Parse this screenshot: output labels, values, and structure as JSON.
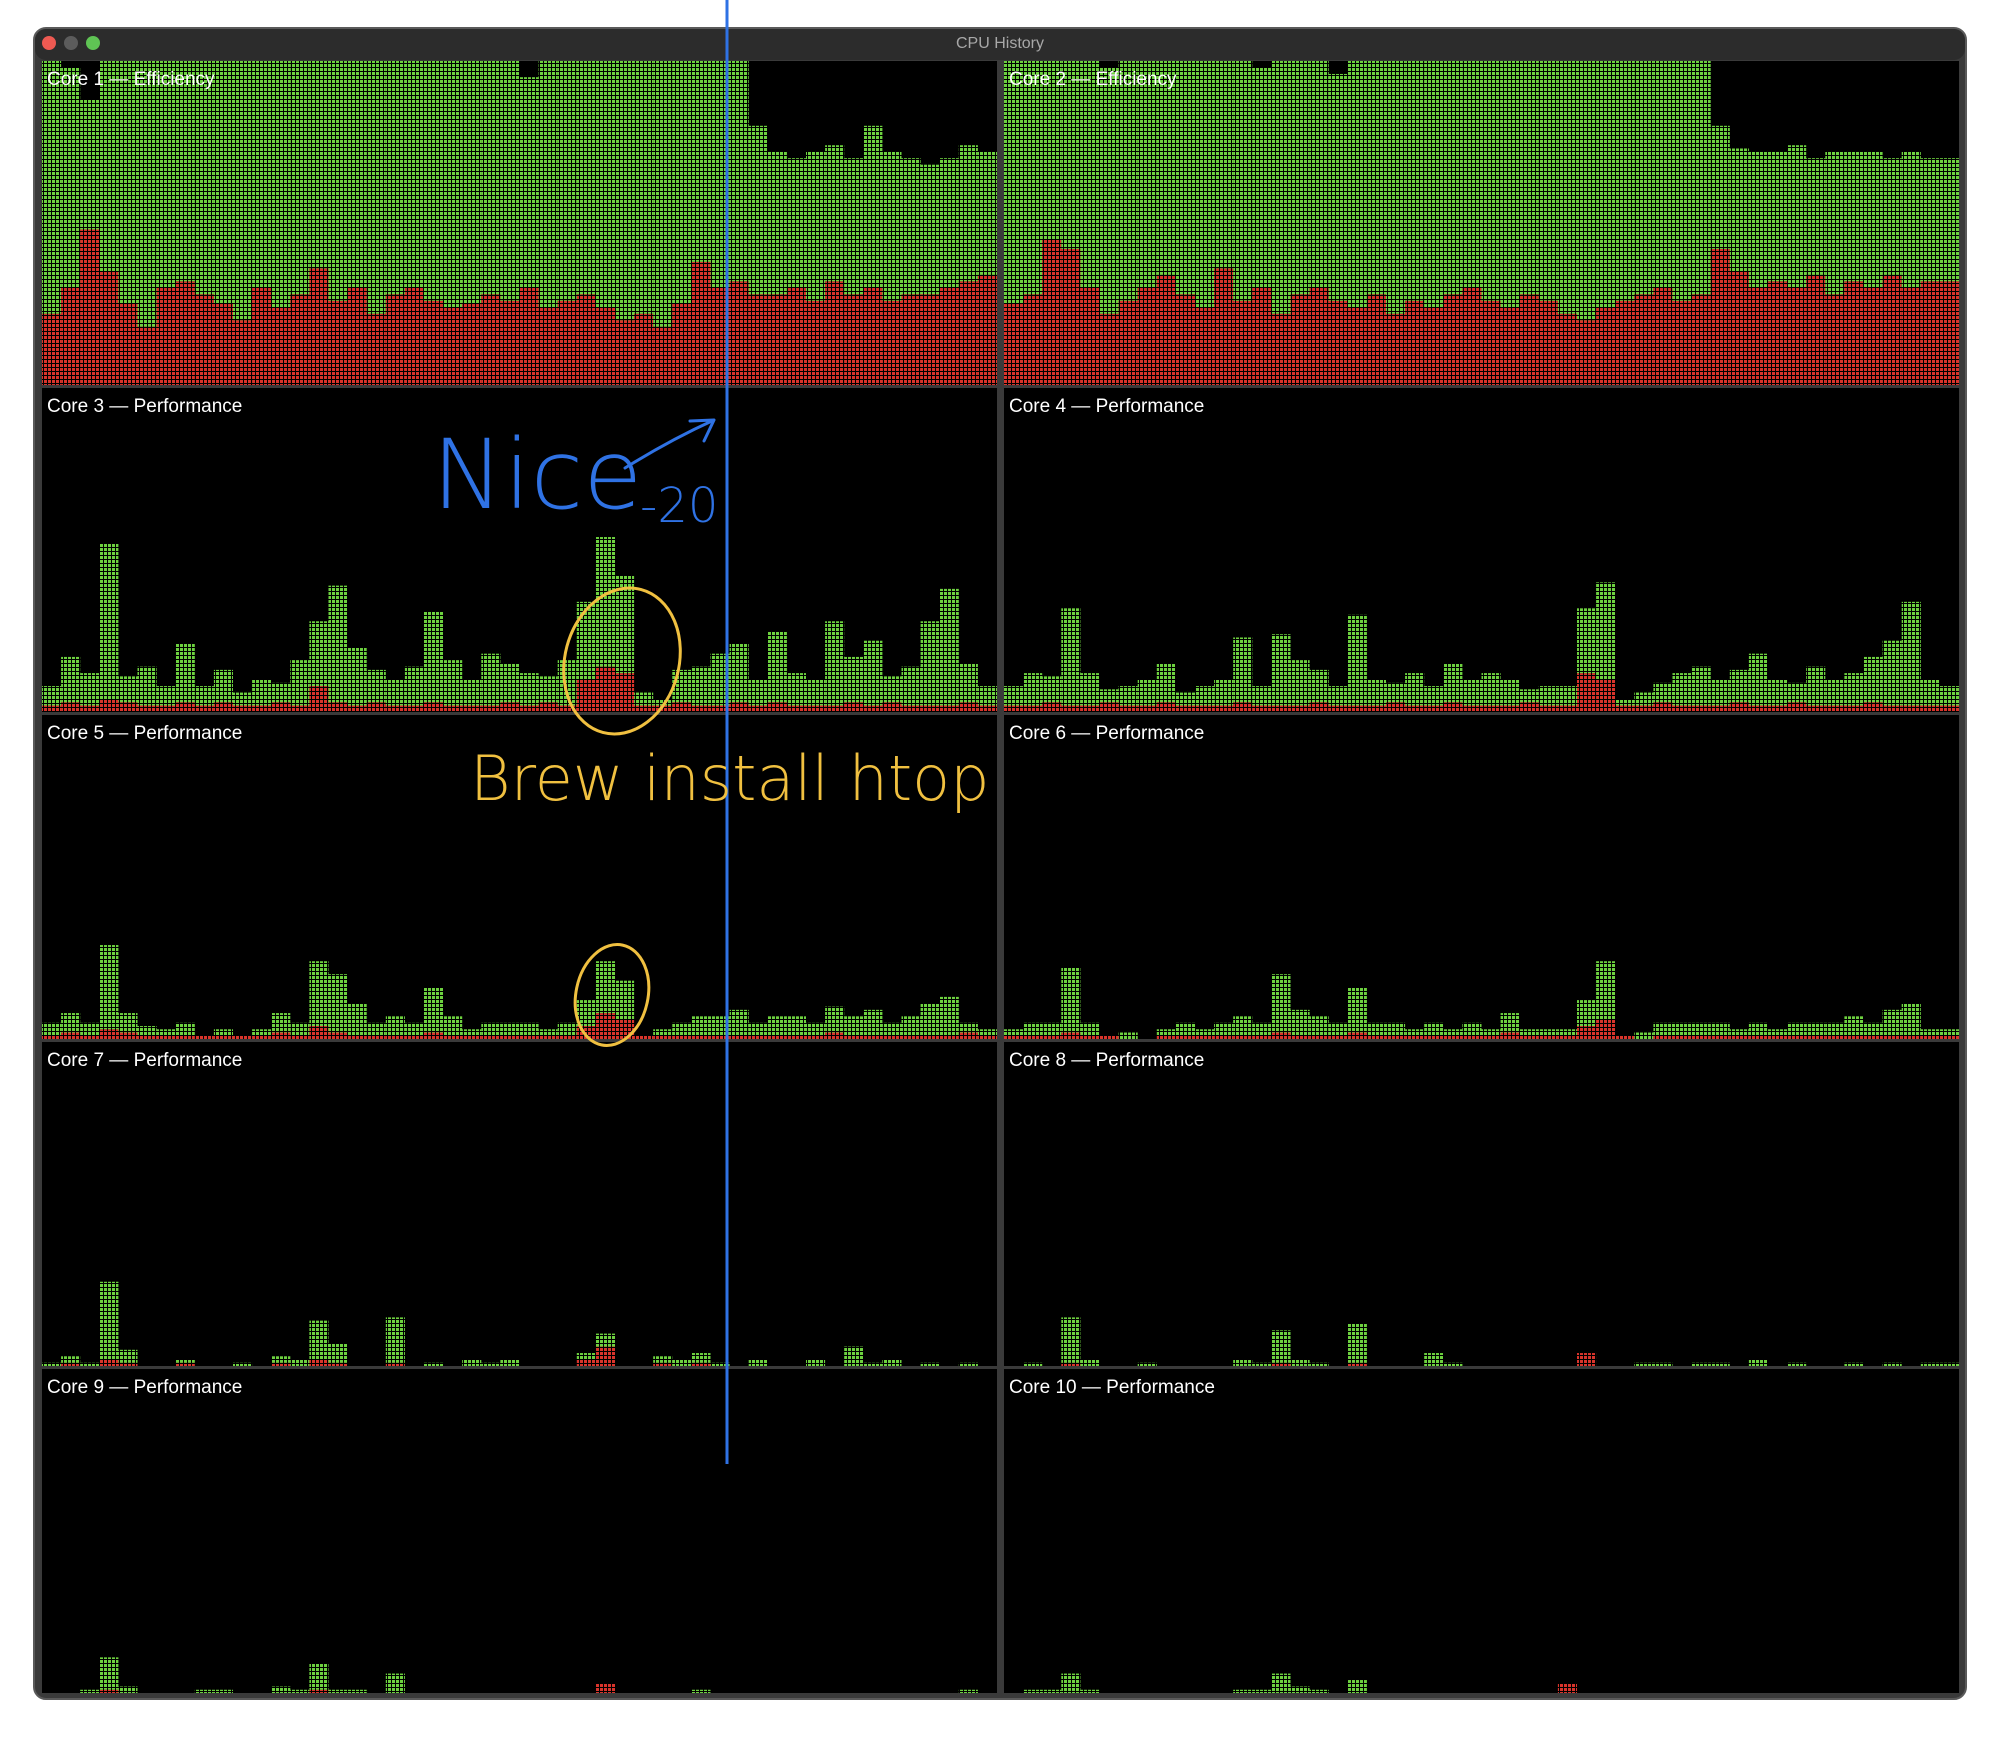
{
  "window": {
    "title": "CPU History"
  },
  "colors": {
    "system": "#d9342b",
    "user": "#6dd13f"
  },
  "panels": [
    {
      "label": "Core 1 — Efficiency",
      "system": [
        22,
        30,
        48,
        35,
        25,
        18,
        30,
        32,
        28,
        25,
        20,
        30,
        24,
        28,
        36,
        26,
        30,
        22,
        28,
        30,
        26,
        24,
        25,
        28,
        26,
        30,
        24,
        26,
        28,
        24,
        20,
        22,
        18,
        25,
        38,
        30,
        32,
        28,
        28,
        30,
        26,
        32,
        28,
        30,
        26,
        28,
        28,
        30,
        32,
        34
      ],
      "user": [
        78,
        68,
        40,
        65,
        75,
        82,
        70,
        68,
        72,
        75,
        80,
        70,
        76,
        72,
        64,
        74,
        70,
        78,
        72,
        70,
        74,
        76,
        75,
        72,
        74,
        65,
        76,
        74,
        72,
        76,
        80,
        78,
        82,
        75,
        62,
        70,
        68,
        52,
        44,
        40,
        46,
        42,
        42,
        50,
        46,
        42,
        40,
        40,
        42,
        38
      ]
    },
    {
      "label": "Core 2 — Efficiency",
      "system": [
        25,
        28,
        45,
        42,
        30,
        22,
        26,
        30,
        34,
        28,
        24,
        36,
        26,
        30,
        22,
        28,
        30,
        26,
        24,
        28,
        22,
        26,
        24,
        28,
        30,
        26,
        24,
        28,
        26,
        22,
        20,
        24,
        26,
        28,
        30,
        26,
        28,
        42,
        35,
        30,
        32,
        30,
        34,
        28,
        32,
        30,
        34,
        30,
        32,
        32
      ],
      "user": [
        75,
        72,
        55,
        58,
        70,
        76,
        74,
        70,
        66,
        72,
        76,
        64,
        74,
        68,
        78,
        72,
        70,
        70,
        76,
        72,
        78,
        74,
        76,
        72,
        70,
        74,
        76,
        72,
        74,
        78,
        80,
        76,
        74,
        72,
        70,
        74,
        72,
        38,
        38,
        42,
        40,
        44,
        36,
        44,
        40,
        42,
        36,
        42,
        38,
        38
      ]
    },
    {
      "label": "Core 3 — Performance",
      "system": [
        2,
        3,
        2,
        4,
        3,
        2,
        2,
        3,
        2,
        3,
        2,
        2,
        3,
        2,
        8,
        3,
        2,
        3,
        2,
        2,
        3,
        2,
        2,
        2,
        3,
        2,
        3,
        2,
        10,
        14,
        12,
        2,
        2,
        3,
        2,
        2,
        3,
        2,
        3,
        2,
        2,
        2,
        3,
        2,
        3,
        2,
        2,
        2,
        3,
        2
      ],
      "user": [
        6,
        14,
        10,
        48,
        8,
        12,
        6,
        18,
        6,
        10,
        4,
        8,
        6,
        14,
        20,
        36,
        18,
        10,
        8,
        12,
        28,
        14,
        8,
        16,
        12,
        10,
        8,
        14,
        24,
        40,
        30,
        4,
        2,
        10,
        12,
        16,
        18,
        8,
        22,
        10,
        8,
        26,
        14,
        20,
        8,
        12,
        26,
        36,
        12,
        6
      ]
    },
    {
      "label": "Core 4 — Performance",
      "system": [
        2,
        2,
        3,
        2,
        2,
        3,
        2,
        2,
        3,
        2,
        2,
        2,
        3,
        2,
        2,
        2,
        3,
        2,
        2,
        2,
        3,
        2,
        2,
        3,
        2,
        2,
        2,
        3,
        2,
        2,
        12,
        10,
        2,
        2,
        3,
        2,
        2,
        2,
        3,
        2,
        2,
        3,
        2,
        2,
        2,
        3,
        2,
        2,
        2,
        2
      ],
      "user": [
        6,
        10,
        8,
        30,
        10,
        4,
        6,
        8,
        12,
        4,
        6,
        8,
        20,
        6,
        22,
        14,
        10,
        6,
        28,
        8,
        6,
        10,
        6,
        12,
        8,
        10,
        8,
        4,
        6,
        6,
        20,
        30,
        2,
        4,
        6,
        10,
        12,
        8,
        10,
        16,
        8,
        6,
        12,
        8,
        10,
        14,
        20,
        32,
        8,
        6
      ]
    },
    {
      "label": "Core 5 — Performance",
      "system": [
        1,
        2,
        1,
        3,
        2,
        1,
        1,
        1,
        1,
        1,
        1,
        1,
        2,
        1,
        4,
        2,
        1,
        1,
        1,
        1,
        2,
        1,
        1,
        1,
        1,
        1,
        1,
        1,
        4,
        8,
        6,
        1,
        1,
        1,
        1,
        1,
        1,
        1,
        1,
        1,
        1,
        2,
        1,
        1,
        1,
        1,
        1,
        1,
        2,
        1
      ],
      "user": [
        4,
        6,
        4,
        26,
        6,
        3,
        2,
        4,
        0,
        2,
        0,
        2,
        6,
        4,
        20,
        18,
        10,
        4,
        6,
        4,
        14,
        6,
        2,
        4,
        4,
        4,
        2,
        4,
        8,
        16,
        12,
        0,
        2,
        4,
        6,
        6,
        8,
        4,
        6,
        6,
        4,
        8,
        6,
        8,
        4,
        6,
        10,
        12,
        3,
        2
      ]
    },
    {
      "label": "Core 6 — Performance",
      "system": [
        1,
        1,
        1,
        2,
        1,
        1,
        0,
        0,
        1,
        1,
        1,
        1,
        1,
        1,
        2,
        1,
        1,
        1,
        2,
        1,
        1,
        1,
        1,
        1,
        1,
        1,
        2,
        1,
        1,
        1,
        4,
        6,
        1,
        0,
        1,
        1,
        1,
        1,
        1,
        1,
        1,
        1,
        1,
        1,
        1,
        1,
        1,
        1,
        1,
        1
      ],
      "user": [
        2,
        4,
        4,
        20,
        4,
        0,
        2,
        0,
        2,
        4,
        2,
        4,
        6,
        4,
        18,
        8,
        6,
        4,
        14,
        4,
        4,
        2,
        4,
        2,
        4,
        2,
        6,
        2,
        2,
        2,
        8,
        18,
        0,
        2,
        4,
        4,
        4,
        4,
        2,
        4,
        2,
        4,
        4,
        4,
        6,
        4,
        8,
        10,
        2,
        2
      ]
    },
    {
      "label": "Core 7 — Performance",
      "system": [
        0,
        1,
        0,
        2,
        1,
        0,
        0,
        1,
        0,
        0,
        0,
        0,
        1,
        0,
        2,
        1,
        0,
        0,
        1,
        0,
        0,
        0,
        0,
        0,
        0,
        0,
        0,
        0,
        2,
        6,
        0,
        0,
        1,
        0,
        1,
        0,
        0,
        0,
        0,
        0,
        0,
        0,
        0,
        0,
        0,
        0,
        0,
        0,
        0,
        0
      ],
      "user": [
        1,
        2,
        1,
        24,
        4,
        0,
        0,
        1,
        0,
        0,
        1,
        0,
        2,
        2,
        12,
        6,
        0,
        0,
        14,
        0,
        1,
        0,
        2,
        1,
        2,
        0,
        0,
        0,
        2,
        4,
        0,
        0,
        2,
        2,
        3,
        1,
        0,
        2,
        0,
        0,
        2,
        0,
        6,
        1,
        2,
        0,
        1,
        0,
        1,
        0
      ]
    },
    {
      "label": "Core 8 — Performance",
      "system": [
        0,
        0,
        0,
        1,
        0,
        0,
        0,
        0,
        0,
        0,
        0,
        0,
        0,
        0,
        1,
        0,
        0,
        0,
        1,
        0,
        0,
        0,
        0,
        0,
        0,
        0,
        0,
        0,
        0,
        0,
        4,
        0,
        0,
        0,
        0,
        0,
        0,
        0,
        0,
        0,
        0,
        0,
        0,
        0,
        0,
        0,
        0,
        0,
        0,
        0
      ],
      "user": [
        0,
        1,
        0,
        14,
        2,
        0,
        0,
        1,
        0,
        0,
        0,
        0,
        2,
        1,
        10,
        2,
        1,
        0,
        12,
        0,
        0,
        0,
        4,
        1,
        0,
        0,
        0,
        0,
        0,
        0,
        0,
        0,
        0,
        1,
        1,
        0,
        1,
        1,
        0,
        2,
        0,
        1,
        0,
        0,
        1,
        0,
        1,
        0,
        1,
        1
      ]
    },
    {
      "label": "Core 9 — Performance",
      "system": [
        0,
        0,
        0,
        1,
        0,
        0,
        0,
        0,
        0,
        0,
        0,
        0,
        0,
        0,
        1,
        0,
        0,
        0,
        0,
        0,
        0,
        0,
        0,
        0,
        0,
        0,
        0,
        0,
        0,
        3,
        0,
        0,
        0,
        0,
        0,
        0,
        0,
        0,
        0,
        0,
        0,
        0,
        0,
        0,
        0,
        0,
        0,
        0,
        0,
        0
      ],
      "user": [
        0,
        0,
        1,
        10,
        2,
        0,
        0,
        0,
        1,
        1,
        0,
        0,
        2,
        1,
        8,
        1,
        1,
        0,
        6,
        0,
        0,
        0,
        0,
        0,
        0,
        0,
        0,
        0,
        0,
        0,
        0,
        0,
        0,
        0,
        1,
        0,
        0,
        0,
        0,
        0,
        0,
        0,
        0,
        0,
        0,
        0,
        0,
        0,
        1,
        0
      ]
    },
    {
      "label": "Core 10 — Performance",
      "system": [
        0,
        0,
        0,
        0,
        0,
        0,
        0,
        0,
        0,
        0,
        0,
        0,
        0,
        0,
        0,
        0,
        0,
        0,
        0,
        0,
        0,
        0,
        0,
        0,
        0,
        0,
        0,
        0,
        0,
        3,
        0,
        0,
        0,
        0,
        0,
        0,
        0,
        0,
        0,
        0,
        0,
        0,
        0,
        0,
        0,
        0,
        0,
        0,
        0,
        0
      ],
      "user": [
        0,
        1,
        1,
        6,
        1,
        0,
        0,
        0,
        0,
        0,
        0,
        0,
        1,
        1,
        6,
        2,
        1,
        0,
        4,
        0,
        0,
        0,
        0,
        0,
        0,
        0,
        0,
        0,
        0,
        0,
        0,
        0,
        0,
        0,
        0,
        0,
        0,
        0,
        0,
        0,
        0,
        0,
        0,
        0,
        0,
        0,
        0,
        0,
        0,
        0
      ]
    }
  ],
  "annotations": {
    "nice": "Nice",
    "nice_value": "-20",
    "brew": "Brew install htop"
  }
}
